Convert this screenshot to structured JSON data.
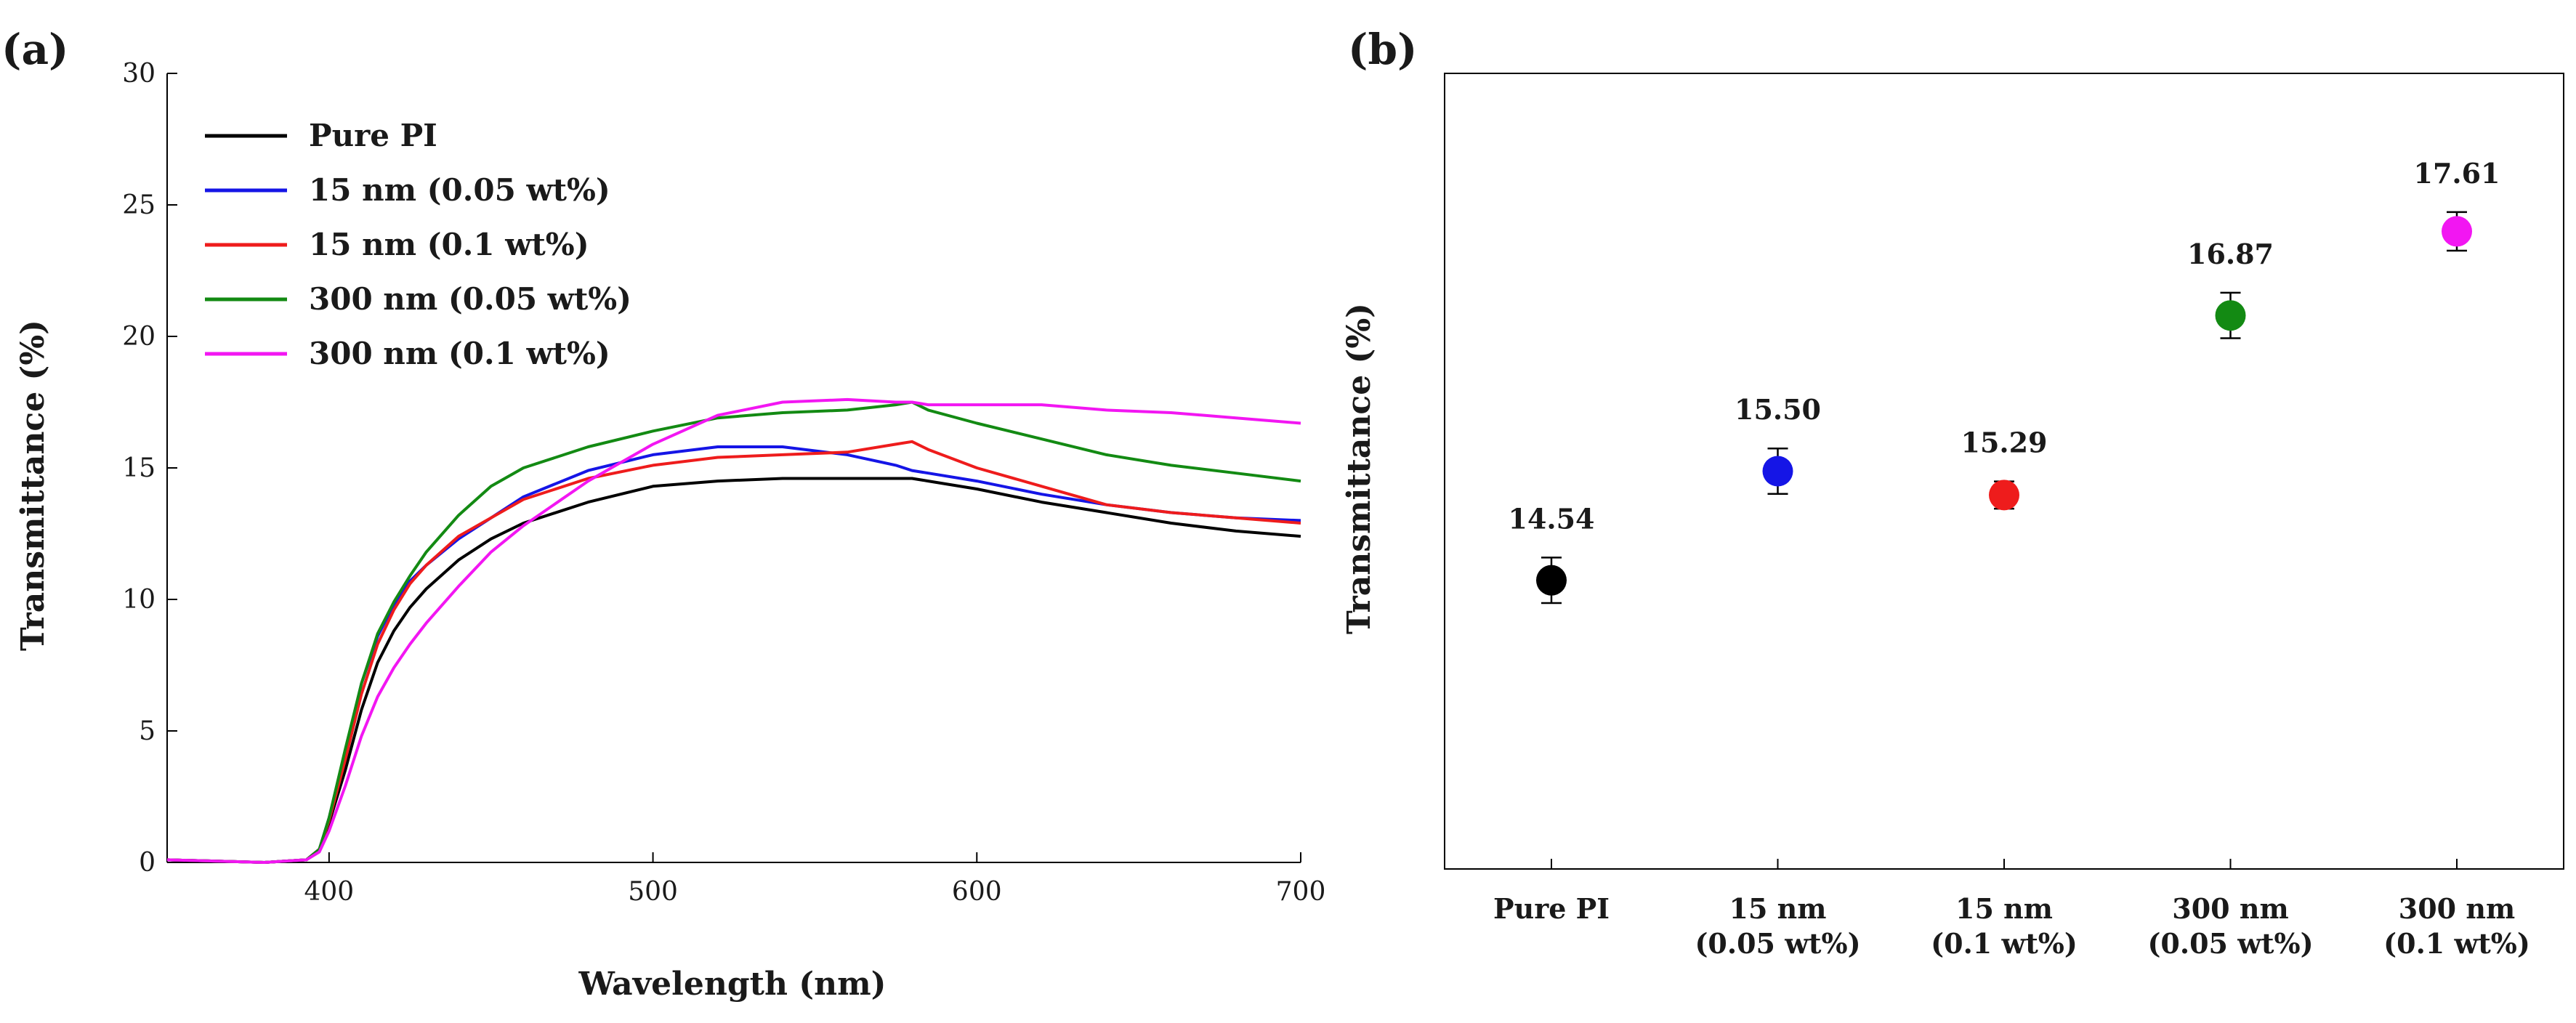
{
  "chart_data": [
    {
      "panel": "(a)",
      "type": "line",
      "title": "",
      "xlabel": "Wavelength (nm)",
      "ylabel": "Transmittance (%)",
      "xlim": [
        350,
        700
      ],
      "ylim": [
        0,
        30
      ],
      "xticks": [
        "400",
        "500",
        "600",
        "700"
      ],
      "yticks": [
        "0",
        "5",
        "10",
        "15",
        "20",
        "25",
        "30"
      ],
      "grid": false,
      "legend_position": "top-left",
      "x": [
        350,
        380,
        393,
        397,
        400,
        405,
        410,
        415,
        420,
        425,
        430,
        440,
        450,
        460,
        480,
        500,
        520,
        540,
        560,
        575,
        580,
        585,
        600,
        620,
        640,
        660,
        680,
        700
      ],
      "series": [
        {
          "name": "Pure PI",
          "color": "#000000",
          "values": [
            0.1,
            0.0,
            0.1,
            0.5,
            1.5,
            3.5,
            5.8,
            7.6,
            8.8,
            9.7,
            10.4,
            11.5,
            12.3,
            12.9,
            13.7,
            14.3,
            14.5,
            14.6,
            14.6,
            14.6,
            14.6,
            14.5,
            14.2,
            13.7,
            13.3,
            12.9,
            12.6,
            12.4
          ]
        },
        {
          "name": "15 nm (0.05 wt%)",
          "color": "#1515e6",
          "values": [
            0.1,
            0.0,
            0.1,
            0.5,
            1.7,
            4.2,
            6.8,
            8.6,
            9.8,
            10.7,
            11.3,
            12.3,
            13.1,
            13.9,
            14.9,
            15.5,
            15.8,
            15.8,
            15.5,
            15.1,
            14.9,
            14.8,
            14.5,
            14.0,
            13.6,
            13.3,
            13.1,
            13.0
          ]
        },
        {
          "name": "15 nm (0.1 wt%)",
          "color": "#ee1c1c",
          "values": [
            0.1,
            0.0,
            0.1,
            0.5,
            1.6,
            3.9,
            6.4,
            8.3,
            9.6,
            10.6,
            11.3,
            12.4,
            13.1,
            13.8,
            14.6,
            15.1,
            15.4,
            15.5,
            15.6,
            15.9,
            16.0,
            15.7,
            15.0,
            14.3,
            13.6,
            13.3,
            13.1,
            12.9
          ]
        },
        {
          "name": "300 nm (0.05 wt%)",
          "color": "#138a13",
          "values": [
            0.1,
            0.0,
            0.1,
            0.5,
            1.7,
            4.3,
            6.8,
            8.7,
            9.9,
            10.9,
            11.8,
            13.2,
            14.3,
            15.0,
            15.8,
            16.4,
            16.9,
            17.1,
            17.2,
            17.4,
            17.5,
            17.2,
            16.7,
            16.1,
            15.5,
            15.1,
            14.8,
            14.5
          ]
        },
        {
          "name": "300 nm (0.1 wt%)",
          "color": "#f216f2",
          "values": [
            0.1,
            0.0,
            0.1,
            0.4,
            1.2,
            2.9,
            4.8,
            6.3,
            7.4,
            8.3,
            9.1,
            10.5,
            11.8,
            12.8,
            14.5,
            15.9,
            17.0,
            17.5,
            17.6,
            17.5,
            17.5,
            17.4,
            17.4,
            17.4,
            17.2,
            17.1,
            16.9,
            16.7
          ]
        }
      ]
    },
    {
      "panel": "(b)",
      "type": "scatter",
      "title": "",
      "xlabel": "",
      "ylabel": "Transmittance (%)",
      "ylim": [
        12,
        19
      ],
      "yticks_visible": false,
      "grid": false,
      "categories": [
        [
          "Pure PI"
        ],
        [
          "15 nm",
          "(0.05 wt%)"
        ],
        [
          "15 nm",
          "(0.1 wt%)"
        ],
        [
          "300 nm",
          "(0.05 wt%)"
        ],
        [
          "300 nm",
          "(0.1 wt%)"
        ]
      ],
      "values": [
        14.54,
        15.5,
        15.29,
        16.87,
        17.61
      ],
      "labels": [
        "14.54",
        "15.50",
        "15.29",
        "16.87",
        "17.61"
      ],
      "error": [
        0.2,
        0.2,
        0.12,
        0.2,
        0.17
      ],
      "colors": [
        "#000000",
        "#1515e6",
        "#ee1c1c",
        "#138a13",
        "#f216f2"
      ]
    }
  ]
}
